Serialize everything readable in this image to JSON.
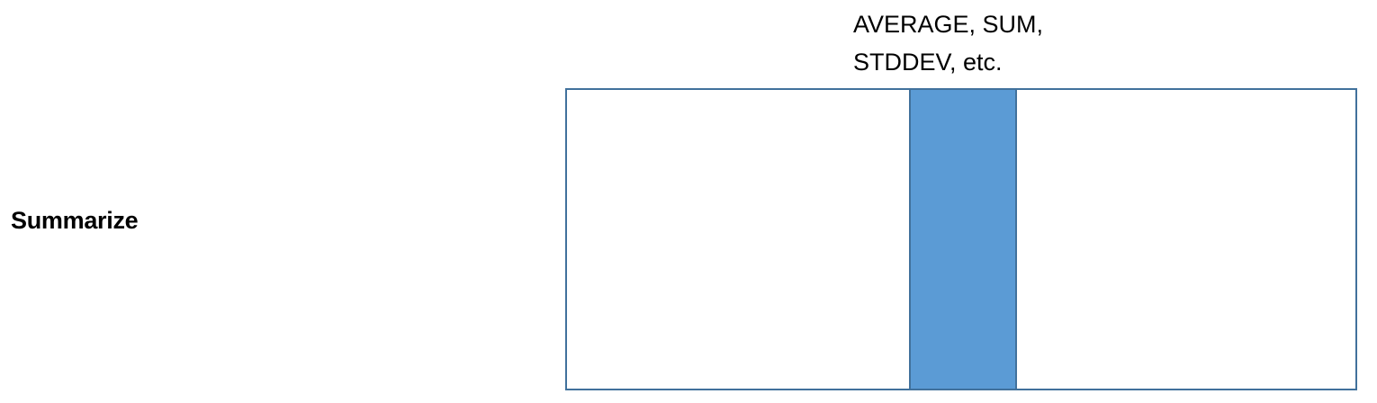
{
  "label": "Summarize",
  "caption": {
    "line1": "AVERAGE, SUM,",
    "line2": "STDDEV, etc."
  },
  "colors": {
    "column_fill": "#5b9bd5",
    "border": "#41719c"
  }
}
